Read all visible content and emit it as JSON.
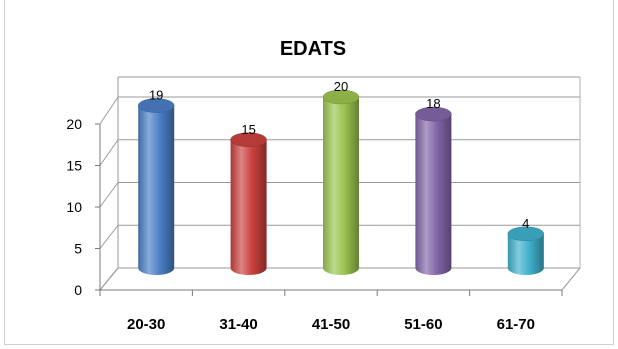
{
  "chart_data": {
    "type": "bar",
    "style": "3d-cylinder",
    "title": "EDATS",
    "xlabel": "",
    "ylabel": "",
    "categories": [
      "20-30",
      "31-40",
      "41-50",
      "51-60",
      "61-70"
    ],
    "values": [
      19,
      15,
      20,
      18,
      4
    ],
    "value_labels": [
      "19",
      "15",
      "20",
      "18",
      "4"
    ],
    "colors": [
      "#4a7ec6",
      "#c9413e",
      "#9bc34f",
      "#8265a8",
      "#3fb0cc"
    ],
    "ylim": [
      0,
      20
    ],
    "yticks": [
      "0",
      "5",
      "10",
      "15",
      "20"
    ],
    "grid": true,
    "legend": "none"
  }
}
